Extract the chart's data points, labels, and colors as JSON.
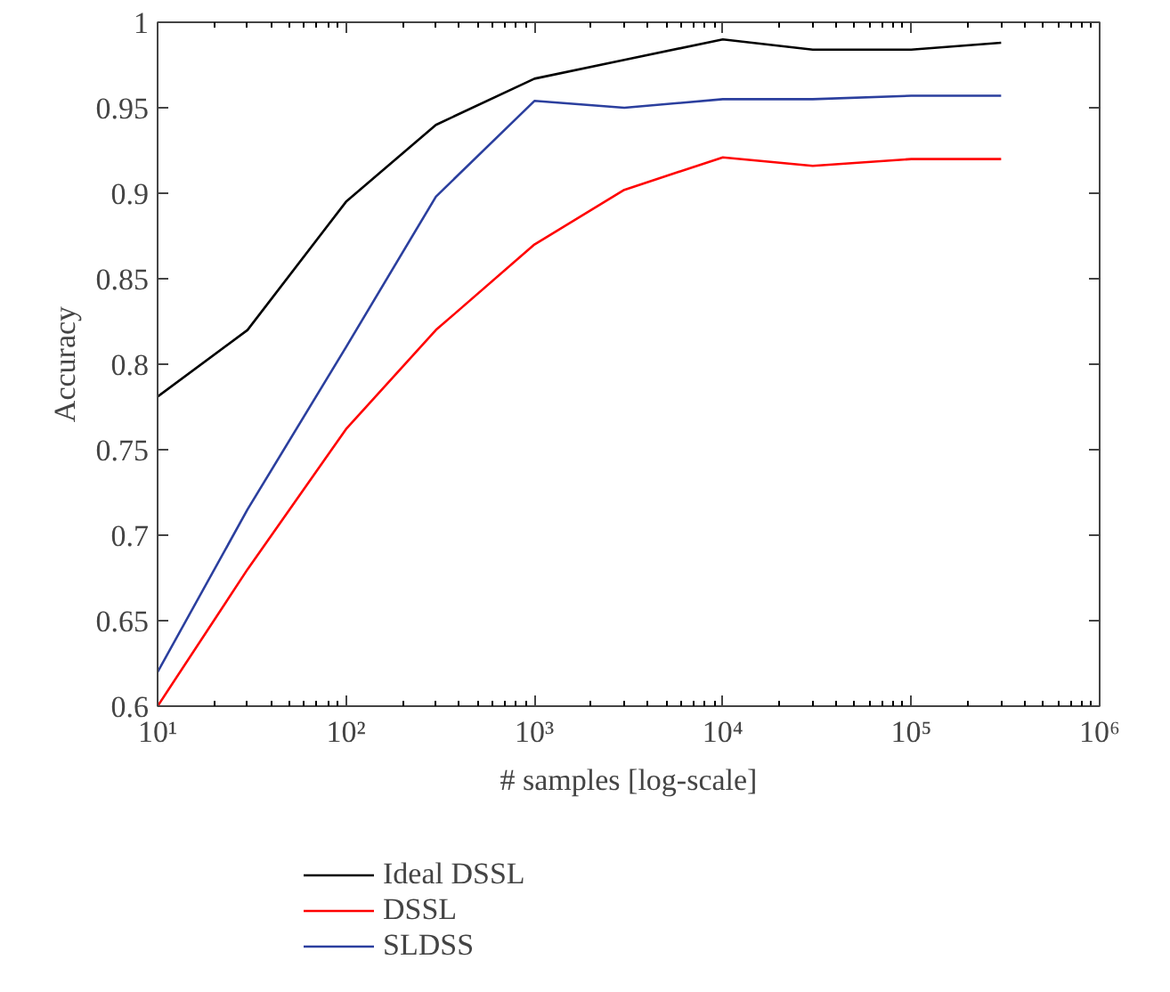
{
  "chart_data": {
    "type": "line",
    "xlabel": "# samples [log-scale]",
    "ylabel": "Accuracy",
    "log": "x",
    "x": [
      10,
      30,
      100,
      300,
      1000,
      3000,
      10000,
      30000,
      100000,
      300000
    ],
    "xlim": [
      10,
      1000000
    ],
    "xticks": [
      {
        "value": 10,
        "label": "10¹"
      },
      {
        "value": 100,
        "label": "10²"
      },
      {
        "value": 1000,
        "label": "10³"
      },
      {
        "value": 10000,
        "label": "10⁴"
      },
      {
        "value": 100000,
        "label": "10⁵"
      },
      {
        "value": 1000000,
        "label": "10⁶"
      }
    ],
    "ylim": [
      0.6,
      1
    ],
    "yticks": [
      0.6,
      0.65,
      0.7,
      0.75,
      0.8,
      0.85,
      0.9,
      0.95,
      1
    ],
    "grid": false,
    "legend": "bottom",
    "marker": "none",
    "line_style": "solid",
    "series": [
      {
        "name": "Ideal DSSL",
        "color": "#000000",
        "values": [
          0.781,
          0.82,
          0.895,
          0.94,
          0.967,
          0.978,
          0.99,
          0.984,
          0.984,
          0.988
        ]
      },
      {
        "name": "DSSL",
        "color": "#ff0000",
        "values": [
          0.6,
          0.68,
          0.762,
          0.82,
          0.87,
          0.902,
          0.921,
          0.916,
          0.92,
          0.92
        ]
      },
      {
        "name": "SLDSS",
        "color": "#2b3f9e",
        "values": [
          0.62,
          0.715,
          0.81,
          0.898,
          0.954,
          0.95,
          0.955,
          0.955,
          0.957,
          0.957
        ]
      }
    ]
  }
}
